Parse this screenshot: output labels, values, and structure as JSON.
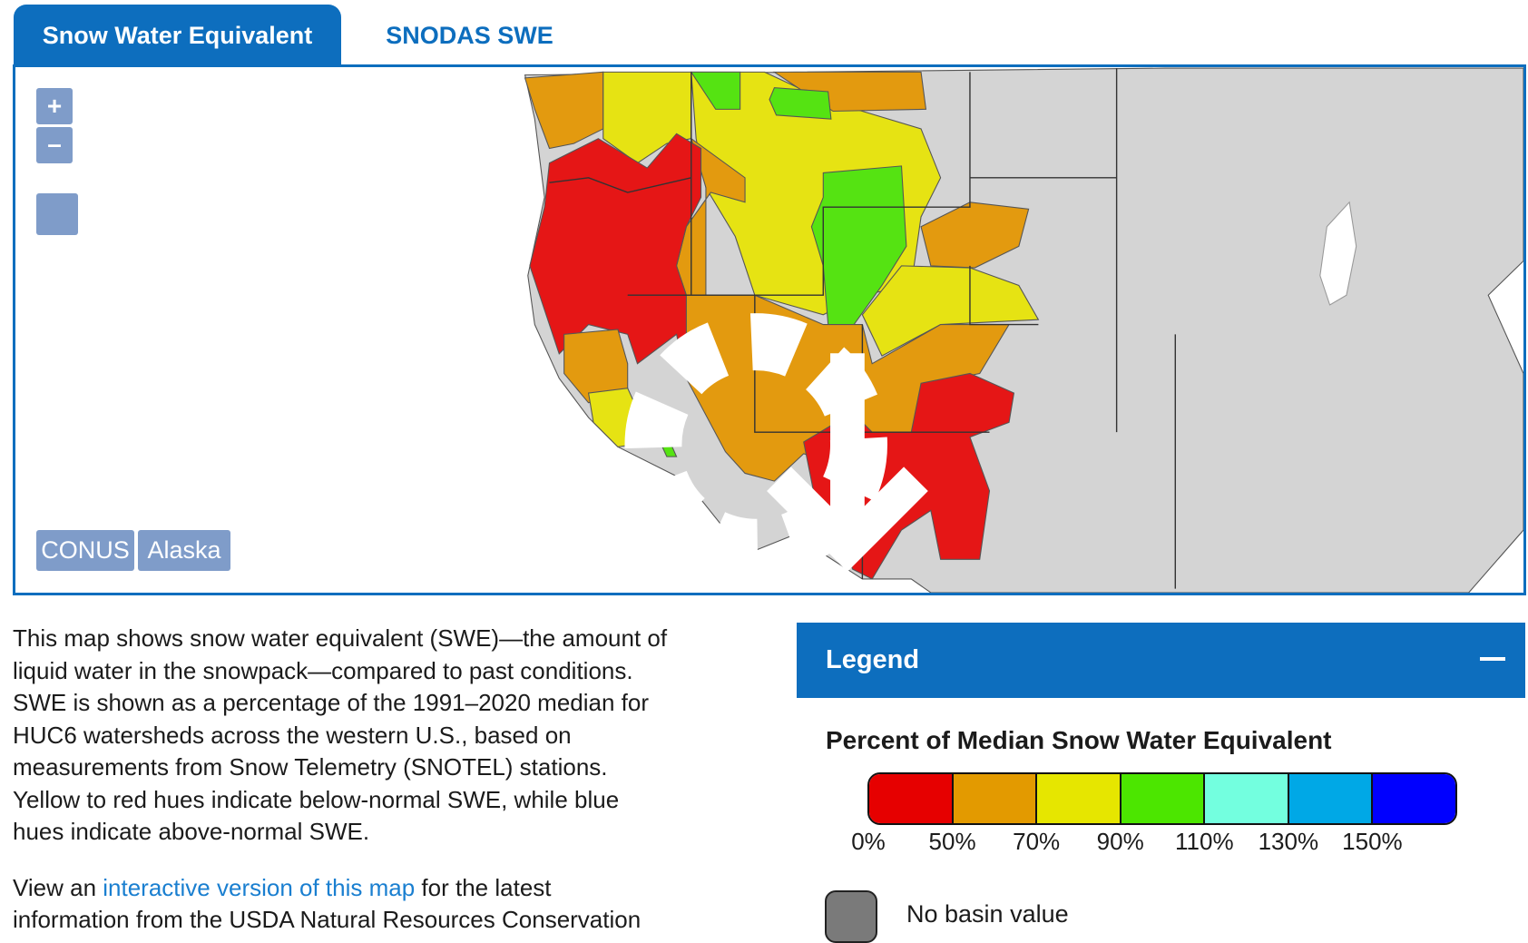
{
  "tabs": [
    {
      "label": "Snow Water Equivalent",
      "active": true
    },
    {
      "label": "SNODAS SWE",
      "active": false
    }
  ],
  "map": {
    "zoom_in": "+",
    "zoom_out": "–",
    "download_icon": "gear-download-icon",
    "region_buttons": [
      "CONUS",
      "Alaska"
    ],
    "colors": {
      "land": "#d4d4d4",
      "red": "#e51616",
      "orange": "#e39a0f",
      "yellow": "#e6e313",
      "green": "#55e312"
    }
  },
  "description": {
    "lines": [
      "This map shows snow water equivalent (SWE)—the amount of",
      "liquid water in the snowpack—compared to past conditions.",
      "SWE is shown as a percentage of the 1991–2020 median for",
      "HUC6 watersheds across the western U.S., based on",
      "measurements from Snow Telemetry (SNOTEL) stations.",
      "Yellow to red hues indicate below-normal SWE, while blue",
      "hues indicate above-normal SWE."
    ],
    "link_prefix": "View an ",
    "link_text": "interactive version of this map",
    "link_suffix": " for the latest",
    "last_line": "information from the USDA Natural Resources Conservation"
  },
  "legend": {
    "header": "Legend",
    "title": "Percent of Median Snow Water Equivalent",
    "colors": [
      "#e60000",
      "#e39a00",
      "#e6e600",
      "#4ce600",
      "#73ffdf",
      "#00a8e6",
      "#0000ff"
    ],
    "ticks": [
      "0%",
      "50%",
      "70%",
      "90%",
      "110%",
      "130%",
      "150%"
    ],
    "no_basin_color": "#7a7a7a",
    "no_basin_label": "No basin value"
  }
}
